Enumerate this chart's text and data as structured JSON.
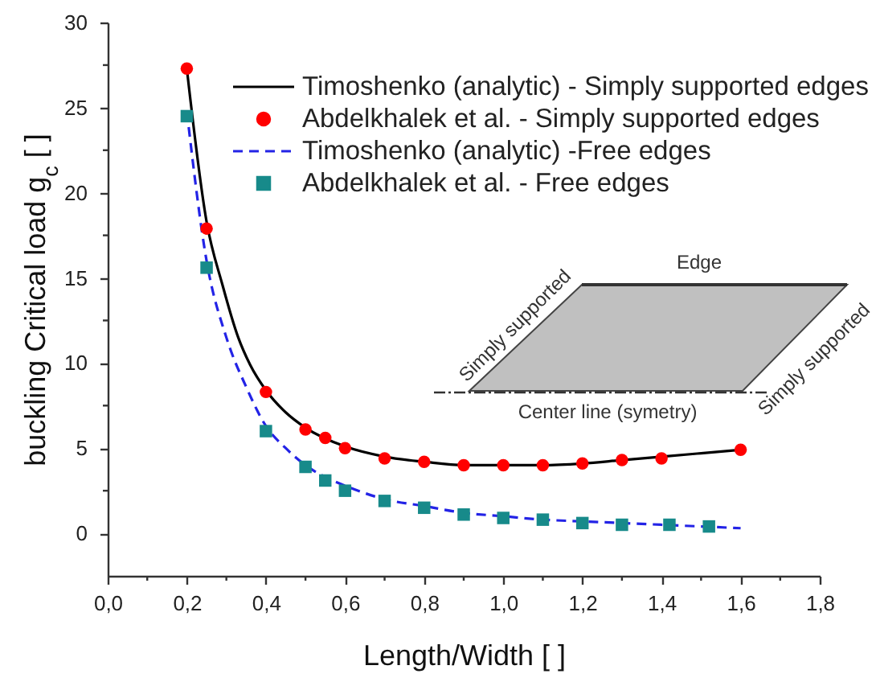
{
  "chart_data": {
    "type": "line",
    "xlabel": "Length/Width [ ]",
    "ylabel": "buckling Critical load g$_{c}$ [ ]",
    "xlim": [
      0,
      1.8
    ],
    "ylim": [
      -2.5,
      30
    ],
    "xticks": [
      {
        "value": 0,
        "label": "0,0"
      },
      {
        "value": 0.1,
        "label": null
      },
      {
        "value": 0.2,
        "label": "0,2"
      },
      {
        "value": 0.3,
        "label": null
      },
      {
        "value": 0.4,
        "label": "0,4"
      },
      {
        "value": 0.5,
        "label": null
      },
      {
        "value": 0.6,
        "label": "0,6"
      },
      {
        "value": 0.7,
        "label": null
      },
      {
        "value": 0.8,
        "label": "0,8"
      },
      {
        "value": 0.9,
        "label": null
      },
      {
        "value": 1.0,
        "label": "1,0"
      },
      {
        "value": 1.1,
        "label": null
      },
      {
        "value": 1.2,
        "label": "1,2"
      },
      {
        "value": 1.3,
        "label": null
      },
      {
        "value": 1.4,
        "label": "1,4"
      },
      {
        "value": 1.5,
        "label": null
      },
      {
        "value": 1.6,
        "label": "1,6"
      },
      {
        "value": 1.7,
        "label": null
      },
      {
        "value": 1.8,
        "label": "1,8"
      }
    ],
    "yticks": [
      0,
      {
        "value": 2.5,
        "label": null
      },
      5,
      {
        "value": 7.5,
        "label": null
      },
      10,
      {
        "value": 12.5,
        "label": null
      },
      15,
      {
        "value": 17.5,
        "label": null
      },
      20,
      {
        "value": 22.5,
        "label": null
      },
      25,
      {
        "value": 27.5,
        "label": null
      },
      30
    ],
    "legend": "top right",
    "series": [
      {
        "name": "Timoshenko (analytic) - Simply supported edges",
        "color": "#000000",
        "line_style": "solid",
        "x": [
          0.2,
          0.25,
          0.29,
          0.33,
          0.36,
          0.4,
          0.45,
          0.5,
          0.6,
          0.7,
          0.8,
          0.9,
          1.0,
          1.1,
          1.2,
          1.3,
          1.4,
          1.5,
          1.6
        ],
        "values": [
          27.3,
          18.3,
          14.6,
          11.5,
          9.9,
          8.4,
          7.1,
          6.2,
          5.1,
          4.5,
          4.2,
          4.0,
          4.0,
          4.0,
          4.1,
          4.3,
          4.5,
          4.7,
          4.9
        ]
      },
      {
        "name": "Abdelkhalek et al. - Simply supported edges",
        "type": "scatter",
        "color": "#ff0000",
        "marker": "circle",
        "x": [
          0.2,
          0.25,
          0.4,
          0.5,
          0.55,
          0.6,
          0.7,
          0.8,
          0.9,
          1.0,
          1.1,
          1.2,
          1.3,
          1.4,
          1.6
        ],
        "values": [
          27.3,
          17.9,
          8.3,
          6.1,
          5.6,
          5.0,
          4.4,
          4.2,
          4.0,
          4.0,
          4.0,
          4.1,
          4.3,
          4.4,
          4.9
        ]
      },
      {
        "name": "Timoshenko (analytic)  -Free edges",
        "color": "#2323e6",
        "line_style": "dashed",
        "x": [
          0.2,
          0.25,
          0.3,
          0.35,
          0.4,
          0.45,
          0.5,
          0.55,
          0.6,
          0.7,
          0.8,
          0.9,
          1.0,
          1.1,
          1.2,
          1.3,
          1.4,
          1.5,
          1.6
        ],
        "values": [
          24.8,
          16.0,
          11.5,
          8.6,
          6.3,
          5.0,
          4.0,
          3.3,
          2.8,
          2.0,
          1.6,
          1.2,
          1.0,
          0.8,
          0.7,
          0.6,
          0.5,
          0.4,
          0.3
        ]
      },
      {
        "name": "Abdelkhalek et al. - Free edges",
        "type": "scatter",
        "color": "#178a8a",
        "marker": "square",
        "x": [
          0.2,
          0.25,
          0.4,
          0.5,
          0.55,
          0.6,
          0.7,
          0.8,
          0.9,
          1.0,
          1.1,
          1.2,
          1.3,
          1.42,
          1.52
        ],
        "values": [
          24.5,
          15.6,
          6.0,
          3.9,
          3.1,
          2.5,
          1.9,
          1.5,
          1.1,
          0.9,
          0.8,
          0.6,
          0.5,
          0.5,
          0.4
        ]
      }
    ],
    "annotations": [
      "Edge",
      "Simply supported",
      "Simply supported",
      "Center line (symetry)"
    ]
  }
}
